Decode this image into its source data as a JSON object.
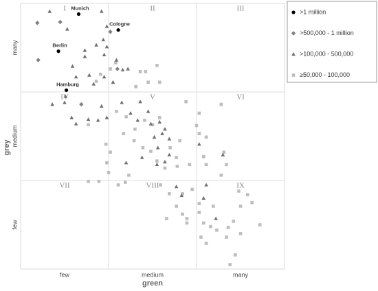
{
  "chart_data": {
    "type": "scatter",
    "x_label": "green",
    "y_label": "grey",
    "xlim": [
      0,
      3
    ],
    "ylim": [
      0,
      3
    ],
    "xticks": [
      {
        "value": 0.5,
        "label": "few"
      },
      {
        "value": 1.5,
        "label": "medium"
      },
      {
        "value": 2.5,
        "label": "many"
      }
    ],
    "yticks": [
      {
        "value": 0.5,
        "label": "few"
      },
      {
        "value": 1.5,
        "label": "medium"
      },
      {
        "value": 2.5,
        "label": "many"
      }
    ],
    "grid_lines": {
      "x": [
        1,
        2
      ],
      "y": [
        1,
        2
      ]
    },
    "quadrant_labels": [
      "I",
      "II",
      "III",
      "IV",
      "V",
      "VI",
      "VII",
      "VIII",
      "IX"
    ],
    "legend_position": "top-right",
    "series": [
      {
        "name": ">1 million",
        "color": "#000000",
        "marker": "circle",
        "labels": [
          "Munich",
          "Cologne",
          "Berlin",
          "Hamburg"
        ],
        "x": [
          0.66,
          1.11,
          0.43,
          0.52
        ],
        "values": [
          2.88,
          2.7,
          2.46,
          2.02
        ]
      },
      {
        "name": ">500,000 - 1 million",
        "color": "#808080",
        "marker": "diamond",
        "x": [
          0.19,
          0.45,
          0.2,
          1.02,
          0.69,
          1.1
        ],
        "values": [
          2.78,
          2.79,
          2.36,
          2.68,
          1.86,
          2.26
        ]
      },
      {
        "name": ">100,000 - 500,000",
        "color": "#707070",
        "marker": "triangle",
        "x": [
          0.33,
          0.92,
          0.53,
          0.98,
          0.73,
          0.86,
          0.73,
          0.59,
          0.94,
          0.98,
          0.95,
          1.09,
          1.16,
          1.05,
          0.95,
          0.63,
          0.78,
          1.22,
          0.83,
          0.51,
          0.5,
          0.36,
          0.58,
          0.63,
          0.77,
          0.88,
          0.98,
          0.92,
          1.15,
          1.25,
          1.36,
          1.45,
          1.33,
          1.48,
          1.58,
          1.64,
          1.61,
          1.52,
          1.69,
          1.56,
          1.69,
          1.64,
          1.55,
          1.2,
          1.77,
          1.83,
          2.11,
          2.08,
          2.22,
          2.3,
          1.38,
          2.03
        ],
        "values": [
          2.91,
          2.91,
          2.71,
          2.74,
          2.47,
          2.53,
          2.4,
          2.29,
          2.59,
          2.51,
          2.42,
          2.36,
          2.25,
          2.11,
          2.17,
          2.17,
          2.19,
          2.26,
          2.09,
          1.95,
          1.88,
          1.86,
          1.71,
          1.64,
          1.69,
          1.68,
          1.71,
          1.84,
          1.88,
          1.76,
          1.89,
          1.78,
          1.68,
          1.64,
          1.66,
          1.58,
          1.53,
          1.49,
          1.47,
          1.37,
          1.29,
          1.21,
          1.18,
          1.2,
          0.93,
          0.83,
          0.95,
          0.8,
          0.57,
          1.29,
          1.26,
          1.41
        ]
      },
      {
        "name": "≥50,000 - 100,000",
        "color": "#bdbdbd",
        "marker": "square",
        "x": [
          1.36,
          1.42,
          1.55,
          1.08,
          1.02,
          0.91,
          0.86,
          1.45,
          1.58,
          1.31,
          0.77,
          1.09,
          1.2,
          1.17,
          1.3,
          1.41,
          1.5,
          1.58,
          1.29,
          1.39,
          1.48,
          1.7,
          1.77,
          1.88,
          2.28,
          2.03,
          2.0,
          2.03,
          1.81,
          2.11,
          2.08,
          2.11,
          2.31,
          2.34,
          2.28,
          1.55,
          1.64,
          1.78,
          1.92,
          0.98,
          1.0,
          1.23,
          1.59,
          1.95,
          1.84,
          1.69,
          1.77,
          1.84,
          1.89,
          2.03,
          2.03,
          2.19,
          2.08,
          2.16,
          2.05,
          2.11,
          2.23,
          2.34,
          2.36,
          2.42,
          2.5,
          2.48,
          2.58,
          2.63,
          2.72,
          2.5,
          2.44,
          2.38,
          1.66,
          1.89,
          0.89,
          0.77,
          1.19,
          1.11,
          0.97,
          1.02
        ],
        "values": [
          2.23,
          2.23,
          2.3,
          2.33,
          2.26,
          2.2,
          2.12,
          2.11,
          2.11,
          2.06,
          1.63,
          1.78,
          1.72,
          1.53,
          1.58,
          1.68,
          1.63,
          1.71,
          1.45,
          1.37,
          1.33,
          1.37,
          1.26,
          1.89,
          1.86,
          1.76,
          1.62,
          1.53,
          1.45,
          1.49,
          1.27,
          1.18,
          1.32,
          1.18,
          1.06,
          1.22,
          1.14,
          1.16,
          1.18,
          1.2,
          1.09,
          1.06,
          0.95,
          0.9,
          0.85,
          0.85,
          0.71,
          0.62,
          0.57,
          0.64,
          0.74,
          0.71,
          0.52,
          0.48,
          0.36,
          0.29,
          0.44,
          0.36,
          0.47,
          0.54,
          0.71,
          0.88,
          0.84,
          0.75,
          0.5,
          0.4,
          0.16,
          0.05,
          0.57,
          0.52,
          0.99,
          0.99,
          0.98,
          0.95,
          1.41,
          1.32
        ]
      }
    ]
  }
}
